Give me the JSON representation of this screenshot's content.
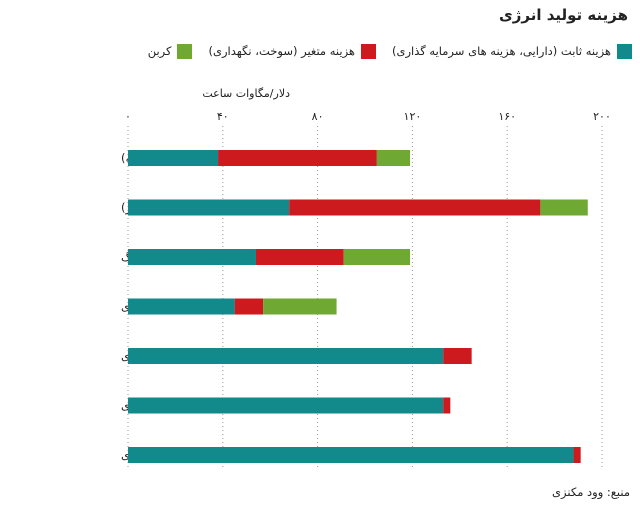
{
  "title": "هزینه تولید انرژی",
  "legend": [
    {
      "label": "هزینه ثابت (دارایی، هزینه های سرمایه گذاری)",
      "color": "#128a8c"
    },
    {
      "label": "هزینه متغیر (سوخت، نگهداری)",
      "color": "#cc1a1f"
    },
    {
      "label": "کربن",
      "color": "#6fa832"
    }
  ],
  "source": "منبع: وود مکنزی",
  "chart_data": {
    "type": "bar",
    "orientation": "horizontal",
    "stacked": true,
    "title": "هزینه تولید انرژی",
    "xlabel": "دلار/مگاوات ساعت",
    "xlim": [
      0,
      200
    ],
    "xticks": [
      0,
      40,
      80,
      120,
      160,
      200
    ],
    "xtick_labels": [
      "۰",
      "۴۰",
      "۸۰",
      "۱۲۰",
      "۱۶۰",
      "۲۰۰"
    ],
    "axis_position": "top",
    "grid": "vertical-dotted",
    "legend_position": "top",
    "categories": [
      "گاز (چرخه بسته)",
      "گاز (چرخه باز)",
      "ذغال سنگ",
      "ذغال سنگ قهوه‌ای",
      "هسته ای",
      "باد کران‌سوی",
      "باد دریاسوی"
    ],
    "series": [
      {
        "name": "هزینه ثابت (دارایی، هزینه های سرمایه گذاری)",
        "color": "#128a8c",
        "values": [
          38,
          68,
          54,
          45,
          133,
          133,
          188
        ]
      },
      {
        "name": "هزینه متغیر (سوخت، نگهداری)",
        "color": "#cc1a1f",
        "values": [
          67,
          106,
          37,
          12,
          12,
          3,
          3
        ]
      },
      {
        "name": "کربن",
        "color": "#6fa832",
        "values": [
          14,
          20,
          28,
          31,
          0,
          0,
          0
        ]
      }
    ]
  }
}
